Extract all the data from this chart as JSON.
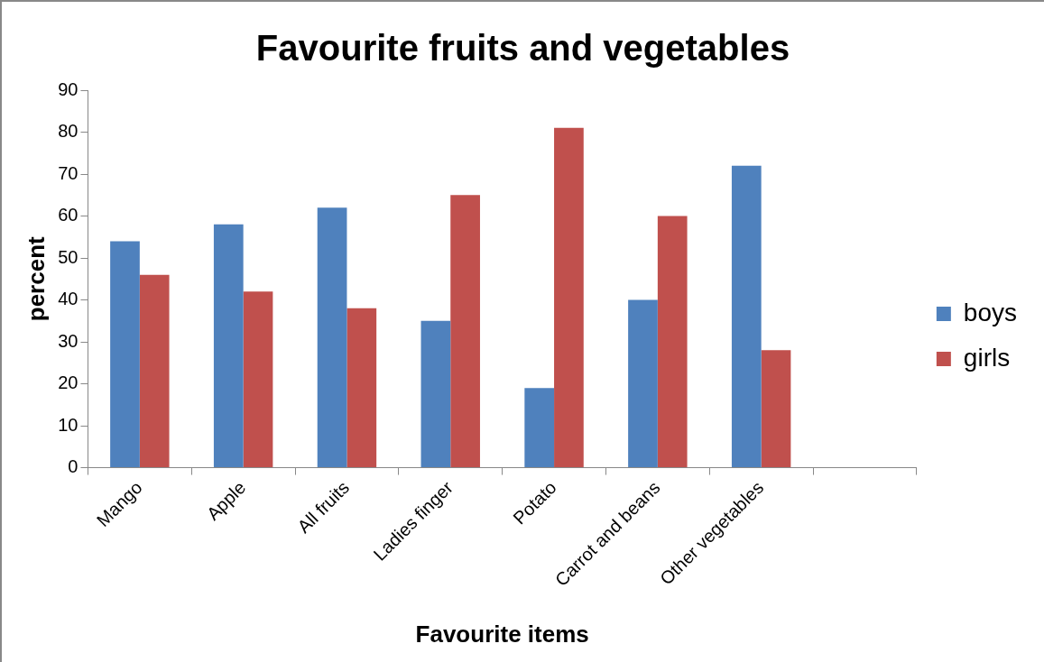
{
  "chart_data": {
    "type": "bar",
    "title": "Favourite fruits and vegetables",
    "xlabel": "Favourite items",
    "ylabel": "percent",
    "categories": [
      "Mango",
      "Apple",
      "All fruits",
      "Ladies finger",
      "Potato",
      "Carrot and beans",
      "Other vegetables",
      null
    ],
    "series": [
      {
        "name": "boys",
        "color": "#4f81bd",
        "values": [
          54,
          58,
          62,
          35,
          19,
          40,
          72,
          null
        ]
      },
      {
        "name": "girls",
        "color": "#c0504d",
        "values": [
          46,
          42,
          38,
          65,
          81,
          60,
          28,
          null
        ]
      }
    ],
    "ylim": [
      0,
      90
    ],
    "yticks": [
      0,
      10,
      20,
      30,
      40,
      50,
      60,
      70,
      80,
      90
    ],
    "grid": false,
    "legend": "right"
  }
}
